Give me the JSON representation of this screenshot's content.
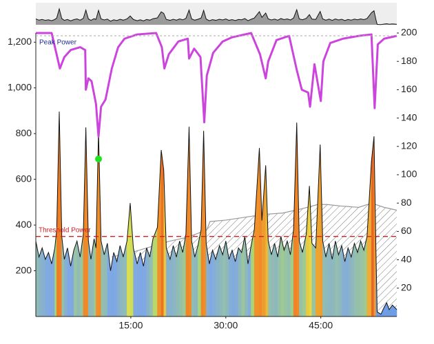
{
  "chart_data": {
    "type": "line",
    "xlim": [
      0,
      57
    ],
    "xticks": [
      {
        "value": 15,
        "label": "15:00"
      },
      {
        "value": 30,
        "label": "30:00"
      },
      {
        "value": 45,
        "label": "45:00"
      }
    ],
    "ylim": [
      0,
      1240
    ],
    "yticks": [
      {
        "value": 200,
        "label": "200"
      },
      {
        "value": 400,
        "label": "400"
      },
      {
        "value": 600,
        "label": "600"
      },
      {
        "value": 800,
        "label": "800"
      },
      {
        "value": 1000,
        "label": "1,000"
      },
      {
        "value": 1200,
        "label": "1,200"
      }
    ],
    "y2lim": [
      0,
      200
    ],
    "y2ticks": [
      20,
      40,
      60,
      80,
      100,
      120,
      140,
      160,
      180,
      200
    ],
    "color_scale": [
      {
        "value": 0,
        "color": "#6b9be6"
      },
      {
        "value": 260,
        "color": "#7fa8e4"
      },
      {
        "value": 340,
        "color": "#a8d478"
      },
      {
        "value": 430,
        "color": "#e6e04a"
      },
      {
        "value": 560,
        "color": "#f0902a"
      },
      {
        "value": 800,
        "color": "#e8551e"
      }
    ],
    "threshold": {
      "value": 350,
      "label": "Threshold Power",
      "color": "#d42020"
    },
    "marker": {
      "x": 9.9,
      "value": 689,
      "color": "#22e022"
    },
    "series": [
      {
        "axis": "y",
        "color": "#111111",
        "x": [
          0,
          0.5,
          1,
          1.5,
          2,
          2.5,
          3,
          3.3,
          3.7,
          4.1,
          4.5,
          5,
          5.5,
          6,
          6.5,
          7,
          7.5,
          7.9,
          8.3,
          8.7,
          9.2,
          9.5,
          9.9,
          10.3,
          10.8,
          11.3,
          11.8,
          12.3,
          12.8,
          13.3,
          13.8,
          14.4,
          14.9,
          15.4,
          16,
          16.5,
          17,
          17.5,
          18,
          18.5,
          19.2,
          19.8,
          20.2,
          20.6,
          21.2,
          21.7,
          22.2,
          22.7,
          23.2,
          23.7,
          24.2,
          24.6,
          25.1,
          25.6,
          26.1,
          26.5,
          26.9,
          27.4,
          27.9,
          28.4,
          29,
          29.5,
          30,
          30.5,
          31,
          31.5,
          32,
          32.5,
          33,
          33.5,
          34,
          34.5,
          35.3,
          35.7,
          36.3,
          36.7,
          37.2,
          37.7,
          38.2,
          38.7,
          39.2,
          39.7,
          40.2,
          40.7,
          41.2,
          41.6,
          42.1,
          42.7,
          43.2,
          43.6,
          44.2,
          44.9,
          45.3,
          45.8,
          46.3,
          46.8,
          47.3,
          47.8,
          48.3,
          48.8,
          49.3,
          49.8,
          50.3,
          50.8,
          51.3,
          51.8,
          52.3,
          53,
          53.4,
          53.7,
          53.9,
          54.5,
          55,
          55.4,
          55.8,
          56.3,
          57
        ],
        "values": [
          330,
          260,
          300,
          250,
          280,
          230,
          300,
          380,
          896,
          350,
          250,
          300,
          220,
          290,
          330,
          260,
          360,
          827,
          330,
          250,
          340,
          300,
          812,
          330,
          270,
          320,
          200,
          280,
          240,
          310,
          260,
          330,
          496,
          300,
          230,
          280,
          220,
          300,
          260,
          340,
          390,
          728,
          640,
          300,
          250,
          310,
          260,
          330,
          280,
          360,
          830,
          330,
          260,
          310,
          380,
          812,
          320,
          230,
          290,
          250,
          310,
          270,
          330,
          250,
          290,
          240,
          300,
          280,
          350,
          230,
          310,
          380,
          737,
          420,
          661,
          330,
          270,
          320,
          260,
          350,
          290,
          330,
          270,
          380,
          848,
          330,
          280,
          360,
          571,
          320,
          300,
          752,
          330,
          260,
          320,
          250,
          330,
          270,
          310,
          240,
          300,
          260,
          320,
          280,
          330,
          290,
          350,
          680,
          788,
          300,
          20,
          10,
          40,
          60,
          30,
          50,
          30
        ]
      },
      {
        "name": "Peak Power",
        "axis": "y2",
        "color": "#cc44dd",
        "label_color": "#1a2a9a",
        "x": [
          0,
          2.5,
          3.8,
          4.5,
          5.5,
          7,
          7.8,
          7.9,
          8.3,
          8.8,
          9.5,
          9.9,
          10.3,
          11,
          12,
          13,
          14,
          16,
          19,
          19.9,
          20.3,
          21,
          22.5,
          24,
          24.2,
          25,
          26,
          26.6,
          27,
          28,
          29.5,
          31,
          34,
          35.4,
          36.3,
          36.7,
          38,
          40,
          41.2,
          42,
          43,
          43.3,
          44,
          45,
          45.4,
          46.5,
          48.5,
          51,
          53,
          53.5,
          54,
          55,
          57
        ],
        "values": [
          200,
          200,
          175,
          183,
          188,
          190,
          188,
          160,
          168,
          166,
          150,
          127,
          148,
          153,
          175,
          190,
          196,
          199,
          200,
          190,
          175,
          185,
          194,
          196,
          182,
          189,
          183,
          137,
          170,
          186,
          194,
          197,
          200,
          185,
          168,
          180,
          195,
          198,
          174,
          160,
          158,
          148,
          178,
          152,
          180,
          193,
          196,
          198,
          199,
          147,
          192,
          196,
          198
        ]
      },
      {
        "axis": "y2",
        "color": "#999999",
        "x": [
          12,
          15,
          18,
          21,
          24,
          27,
          27.5,
          30,
          33,
          36,
          39,
          42,
          44.5,
          46,
          48,
          51,
          53,
          55,
          57
        ],
        "values": [
          42,
          45,
          49,
          53,
          56,
          61,
          67,
          68,
          70,
          72,
          73,
          76,
          79,
          79,
          78,
          77,
          80,
          77,
          75
        ]
      }
    ]
  }
}
